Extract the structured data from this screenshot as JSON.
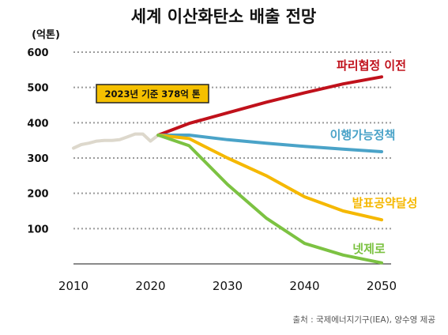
{
  "chart_data": {
    "type": "line",
    "title": "세계 이산화탄소 배출 전망",
    "ylabel": "(억톤)",
    "xlabel": "",
    "xlim": [
      2010,
      2050
    ],
    "ylim": [
      0,
      600
    ],
    "x_ticks": [
      "2010",
      "2020",
      "2030",
      "2040",
      "2050"
    ],
    "y_ticks": [
      "100",
      "200",
      "300",
      "400",
      "500",
      "600"
    ],
    "grid": true,
    "annotation": "2023년 기준 378억 톤",
    "source": "출처 : 국제에너지기구(IEA), 양수영 제공",
    "series": [
      {
        "name": "",
        "role": "historical",
        "color": "#ddd8cc",
        "points": [
          [
            2010,
            328
          ],
          [
            2011,
            338
          ],
          [
            2012,
            342
          ],
          [
            2013,
            348
          ],
          [
            2014,
            350
          ],
          [
            2015,
            350
          ],
          [
            2016,
            352
          ],
          [
            2017,
            360
          ],
          [
            2018,
            368
          ],
          [
            2019,
            368
          ],
          [
            2020,
            348
          ],
          [
            2021,
            365
          ]
        ]
      },
      {
        "name": "파리협정 이전",
        "color": "#c0111b",
        "points": [
          [
            2021,
            365
          ],
          [
            2025,
            398
          ],
          [
            2030,
            428
          ],
          [
            2035,
            458
          ],
          [
            2040,
            485
          ],
          [
            2045,
            510
          ],
          [
            2050,
            530
          ]
        ]
      },
      {
        "name": "이행가능정책",
        "color": "#4aa3c8",
        "points": [
          [
            2021,
            365
          ],
          [
            2025,
            365
          ],
          [
            2030,
            352
          ],
          [
            2035,
            342
          ],
          [
            2040,
            333
          ],
          [
            2045,
            325
          ],
          [
            2050,
            318
          ]
        ]
      },
      {
        "name": "발표공약달성",
        "color": "#f5b800",
        "points": [
          [
            2021,
            365
          ],
          [
            2025,
            355
          ],
          [
            2030,
            300
          ],
          [
            2035,
            250
          ],
          [
            2040,
            190
          ],
          [
            2045,
            150
          ],
          [
            2050,
            125
          ]
        ]
      },
      {
        "name": "넷제로",
        "color": "#7cc242",
        "points": [
          [
            2021,
            365
          ],
          [
            2025,
            335
          ],
          [
            2030,
            225
          ],
          [
            2035,
            130
          ],
          [
            2040,
            58
          ],
          [
            2045,
            25
          ],
          [
            2050,
            3
          ]
        ]
      }
    ]
  }
}
